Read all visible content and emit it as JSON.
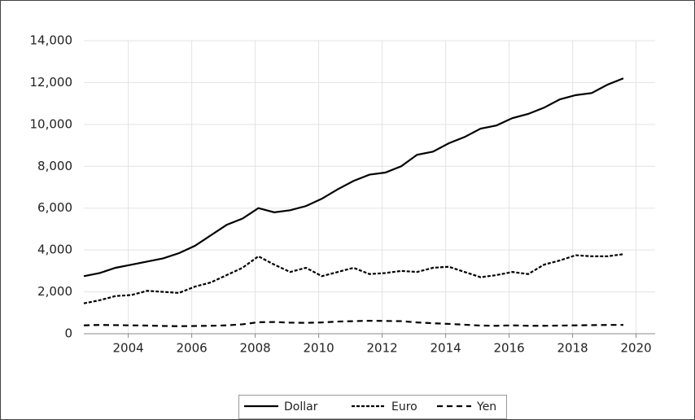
{
  "chart_data": {
    "type": "line",
    "x": [
      2002.6,
      2003.1,
      2003.6,
      2004.1,
      2004.6,
      2005.1,
      2005.6,
      2006.1,
      2006.6,
      2007.1,
      2007.6,
      2008.1,
      2008.6,
      2009.1,
      2009.6,
      2010.1,
      2010.6,
      2011.1,
      2011.6,
      2012.1,
      2012.6,
      2013.1,
      2013.6,
      2014.1,
      2014.6,
      2015.1,
      2015.6,
      2016.1,
      2016.6,
      2017.1,
      2017.6,
      2018.1,
      2018.6,
      2019.1,
      2019.6
    ],
    "series": [
      {
        "name": "Dollar",
        "color": "#000000",
        "dash": "solid",
        "values": [
          2750,
          2900,
          3150,
          3300,
          3450,
          3600,
          3850,
          4200,
          4700,
          5200,
          5500,
          6000,
          5800,
          5900,
          6100,
          6450,
          6900,
          7300,
          7600,
          7700,
          8000,
          8550,
          8700,
          9100,
          9400,
          9800,
          9950,
          10300,
          10500,
          10800,
          11200,
          11400,
          11500,
          11900,
          12200
        ]
      },
      {
        "name": "Euro",
        "color": "#000000",
        "dash": "short",
        "values": [
          1450,
          1600,
          1800,
          1850,
          2050,
          2000,
          1950,
          2250,
          2450,
          2800,
          3150,
          3700,
          3300,
          2950,
          3150,
          2750,
          2950,
          3150,
          2850,
          2900,
          3000,
          2950,
          3150,
          3200,
          2950,
          2700,
          2800,
          2950,
          2850,
          3300,
          3500,
          3750,
          3700,
          3700,
          3800
        ]
      },
      {
        "name": "Yen",
        "color": "#000000",
        "dash": "long",
        "values": [
          400,
          420,
          410,
          400,
          390,
          370,
          360,
          370,
          380,
          400,
          450,
          550,
          560,
          530,
          520,
          540,
          580,
          600,
          620,
          610,
          600,
          540,
          500,
          470,
          430,
          390,
          380,
          400,
          380,
          380,
          390,
          400,
          410,
          420,
          420
        ]
      }
    ],
    "xlim": [
      2002.6,
      2020.6
    ],
    "xticks": [
      2004,
      2006,
      2008,
      2010,
      2012,
      2014,
      2016,
      2018,
      2020
    ],
    "ylim": [
      0,
      14000
    ],
    "yticks": [
      0,
      {
        "value": 2000,
        "label": "2,000"
      },
      {
        "value": 4000,
        "label": "4,000"
      },
      {
        "value": 6000,
        "label": "6,000"
      },
      {
        "value": 8000,
        "label": "8,000"
      },
      {
        "value": 10000,
        "label": "10,000"
      },
      {
        "value": 12000,
        "label": "12,000"
      },
      {
        "value": 14000,
        "label": "14,000"
      }
    ],
    "grid": true,
    "legend": "bottom"
  }
}
